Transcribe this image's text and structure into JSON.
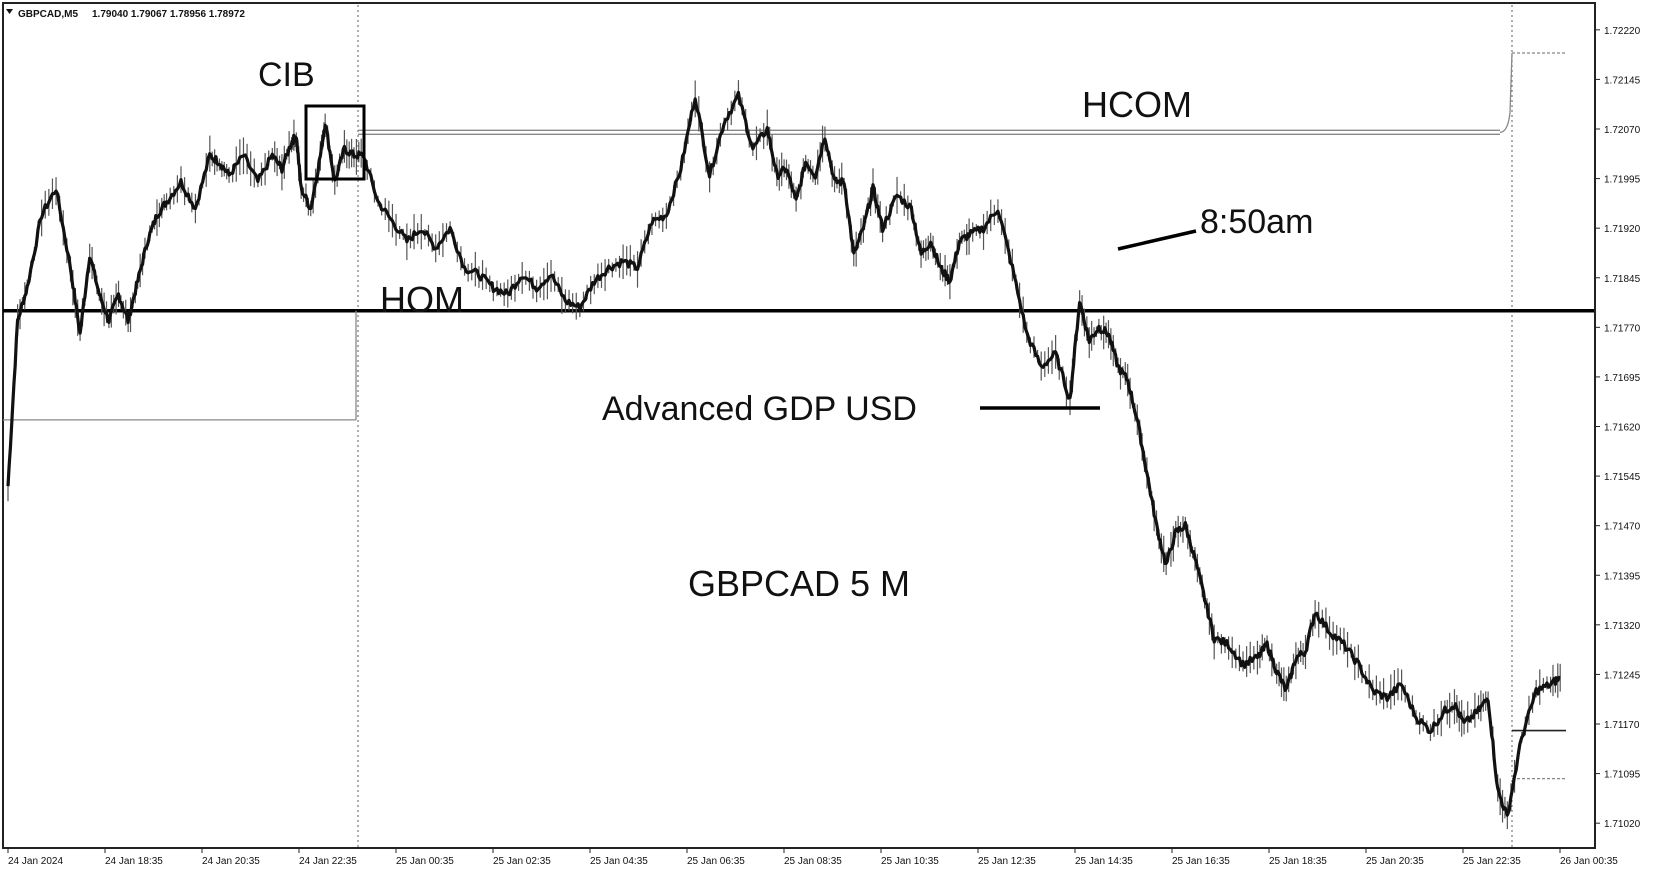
{
  "header": {
    "symbol_label": "GBPCAD,M5",
    "ohlc_label": "1.79040 1.79067 1.78956 1.78972"
  },
  "annotations": {
    "cib": "CIB",
    "hcom": "HCOM",
    "hom": "HOM",
    "time_note": "8:50am",
    "news": "Advanced GDP USD",
    "chart_title": "GBPCAD 5 M"
  },
  "colors": {
    "background": "#ffffff",
    "price_line": "#111111",
    "wick": "#555555",
    "level_line": "#000000",
    "dotted_level": "#888888"
  },
  "chart_data": {
    "type": "line",
    "title": "GBPCAD 5 M",
    "x_tick_labels": [
      "24 Jan 2024",
      "24 Jan 18:35",
      "24 Jan 20:35",
      "24 Jan 22:35",
      "25 Jan 00:35",
      "25 Jan 02:35",
      "25 Jan 04:35",
      "25 Jan 06:35",
      "25 Jan 08:35",
      "25 Jan 10:35",
      "25 Jan 12:35",
      "25 Jan 14:35",
      "25 Jan 16:35",
      "25 Jan 18:35",
      "25 Jan 20:35",
      "25 Jan 22:35",
      "26 Jan 00:35"
    ],
    "y_tick_labels": [
      "1.72220",
      "1.72145",
      "1.72070",
      "1.71995",
      "1.71920",
      "1.71845",
      "1.71770",
      "1.71695",
      "1.71620",
      "1.71545",
      "1.71470",
      "1.71395",
      "1.71320",
      "1.71245",
      "1.71170",
      "1.71095",
      "1.71020"
    ],
    "ylim": [
      1.7099,
      1.7225
    ],
    "xlim": [
      0,
      16.2
    ],
    "levels": {
      "hom": 1.71795,
      "hcom": 1.72065,
      "asia_box_low": 1.7163,
      "session_high_ref": 1.72185,
      "late_ref": 1.7116
    },
    "series": [
      {
        "x": [
          0,
          0.1,
          0.2,
          0.35,
          0.5,
          0.65,
          0.75,
          0.85,
          0.95,
          1.05,
          1.15,
          1.25,
          1.35,
          1.45,
          1.55,
          1.65,
          1.8,
          1.95,
          2.1,
          2.2,
          2.3,
          2.45,
          2.6,
          2.75,
          2.85,
          2.95,
          3.0,
          3.05,
          3.15,
          3.25,
          3.3,
          3.4,
          3.5,
          3.6,
          3.7,
          3.85,
          4.0,
          4.15,
          4.3,
          4.45,
          4.6,
          4.75,
          4.9,
          5.05,
          5.2,
          5.35,
          5.5,
          5.65,
          5.8,
          5.95,
          6.1,
          6.25,
          6.4,
          6.55,
          6.7,
          6.85,
          7.0,
          7.15,
          7.3,
          7.45,
          7.6,
          7.75,
          7.9,
          8.0,
          8.1,
          8.2,
          8.3,
          8.4,
          8.5,
          8.6,
          8.7,
          8.8,
          8.9,
          9.0,
          9.1,
          9.25,
          9.4,
          9.5,
          9.6,
          9.7,
          9.8,
          9.9,
          10.0,
          10.15,
          10.3,
          10.45,
          10.6,
          10.75,
          10.9,
          11.05,
          11.15,
          11.25,
          11.35,
          11.45,
          11.55,
          11.65,
          11.75,
          11.85,
          11.95,
          12.05,
          12.15,
          12.25,
          12.35,
          12.45,
          12.55,
          12.7,
          12.85,
          13.0,
          13.1,
          13.2,
          13.3,
          13.4,
          13.5,
          13.6,
          13.75,
          13.9,
          14.05,
          14.2,
          14.35,
          14.5,
          14.65,
          14.8,
          14.95,
          15.05,
          15.15,
          15.3,
          15.4,
          15.5,
          15.6,
          15.75,
          15.9,
          16.05,
          16.15
        ],
        "y": [
          1.7153,
          1.7178,
          1.7183,
          1.7194,
          1.7198,
          1.7186,
          1.7176,
          1.7188,
          1.7182,
          1.7178,
          1.7182,
          1.7178,
          1.7184,
          1.719,
          1.7194,
          1.7196,
          1.7199,
          1.7195,
          1.7203,
          1.7202,
          1.72,
          1.7203,
          1.7199,
          1.7203,
          1.7201,
          1.7205,
          1.7206,
          1.7198,
          1.7195,
          1.7203,
          1.7208,
          1.7199,
          1.7204,
          1.7203,
          1.7203,
          1.7196,
          1.7193,
          1.719,
          1.7192,
          1.7189,
          1.7192,
          1.7186,
          1.7185,
          1.7183,
          1.7182,
          1.7185,
          1.7183,
          1.7185,
          1.7181,
          1.718,
          1.7184,
          1.7186,
          1.7187,
          1.7186,
          1.7193,
          1.7194,
          1.7201,
          1.7212,
          1.72,
          1.7208,
          1.7212,
          1.7204,
          1.7207,
          1.72,
          1.7201,
          1.7196,
          1.7202,
          1.72,
          1.7206,
          1.7199,
          1.7199,
          1.7188,
          1.7192,
          1.7198,
          1.7192,
          1.7197,
          1.7195,
          1.7188,
          1.719,
          1.7186,
          1.7184,
          1.719,
          1.7191,
          1.7192,
          1.7195,
          1.7186,
          1.7176,
          1.7171,
          1.7173,
          1.7166,
          1.7181,
          1.7175,
          1.7177,
          1.7176,
          1.7171,
          1.7169,
          1.7163,
          1.7155,
          1.7147,
          1.7141,
          1.7146,
          1.7147,
          1.7142,
          1.7136,
          1.713,
          1.7129,
          1.7126,
          1.7127,
          1.7129,
          1.7125,
          1.7122,
          1.7127,
          1.7128,
          1.7134,
          1.7131,
          1.7129,
          1.7126,
          1.7122,
          1.7121,
          1.7123,
          1.7118,
          1.7116,
          1.7119,
          1.712,
          1.7117,
          1.7119,
          1.7121,
          1.7107,
          1.7103,
          1.7115,
          1.7122,
          1.7123,
          1.7124
        ]
      }
    ]
  }
}
